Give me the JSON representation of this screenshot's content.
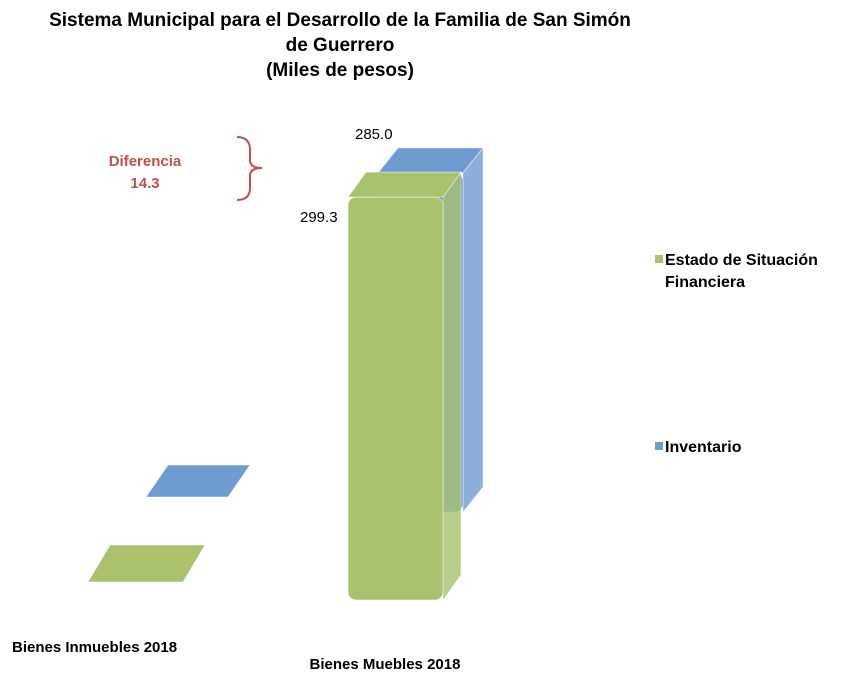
{
  "chart_data": {
    "type": "bar3d",
    "title": "Sistema Municipal para el Desarrollo de la Familia de San Simón de Guerrero",
    "subtitle": "(Miles de pesos)",
    "categories": [
      "Bienes Inmuebles 2018",
      "Bienes Muebles 2018"
    ],
    "series": [
      {
        "name": "Estado de Situación Financiera",
        "color": "#a9c26e",
        "values": [
          0,
          299.3
        ]
      },
      {
        "name": "Inventario",
        "color": "#6f9bd1",
        "values": [
          0,
          285.0
        ],
        "value_labels": [
          null,
          "285.0"
        ]
      }
    ],
    "annotation": {
      "text": "Diferencia",
      "value": 14.3
    }
  }
}
